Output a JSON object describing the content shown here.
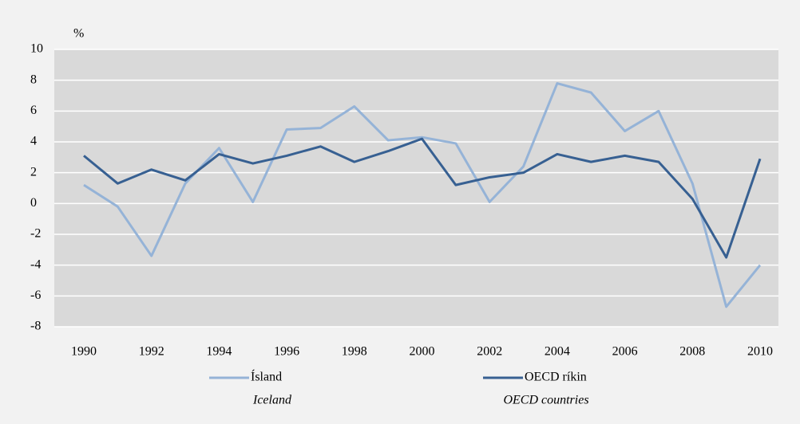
{
  "chart_data": {
    "type": "line",
    "y_unit": "%",
    "categories": [
      "1990",
      null,
      "1992",
      null,
      "1994",
      null,
      "1996",
      null,
      "1998",
      null,
      "2000",
      null,
      "2002",
      null,
      "2004",
      null,
      "2006",
      null,
      "2008",
      null,
      "2010"
    ],
    "series": [
      {
        "name": "Ísland",
        "translation": "Iceland",
        "color": "#95b3d7",
        "values": [
          1.2,
          -0.2,
          -3.4,
          1.3,
          3.6,
          0.1,
          4.8,
          4.9,
          6.3,
          4.1,
          4.3,
          3.9,
          0.1,
          2.4,
          7.8,
          7.2,
          4.7,
          6.0,
          1.3,
          -6.7,
          -4.0
        ]
      },
      {
        "name": "OECD ríkin",
        "translation": "OECD countries",
        "color": "#376092",
        "values": [
          3.1,
          1.3,
          2.2,
          1.5,
          3.2,
          2.6,
          3.1,
          3.7,
          2.7,
          3.4,
          4.2,
          1.2,
          1.7,
          2.0,
          3.2,
          2.7,
          3.1,
          2.7,
          0.3,
          -3.5,
          2.9
        ]
      }
    ],
    "ylim": [
      -8,
      10
    ],
    "yticks": [
      -8,
      -6,
      -4,
      -2,
      0,
      2,
      4,
      6,
      8,
      10
    ],
    "grid": true,
    "legend": "bottom"
  }
}
